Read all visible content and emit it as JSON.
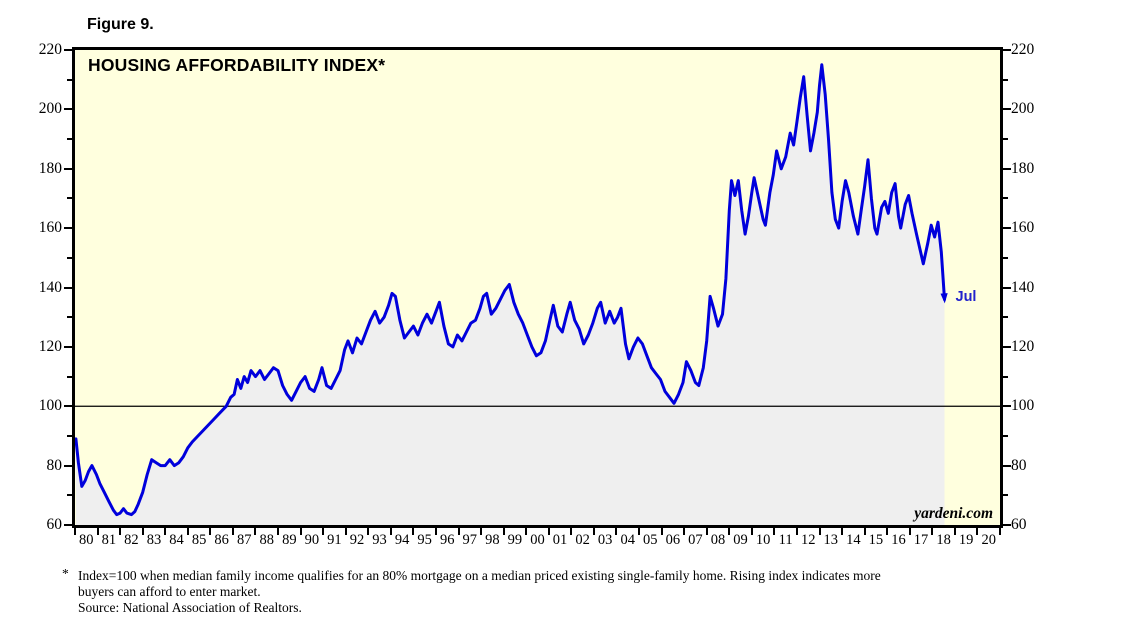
{
  "figure_label": "Figure 9.",
  "chart": {
    "title": "HOUSING AFFORDABILITY INDEX*",
    "watermark": "yardeni.com",
    "last_point_label": "Jul"
  },
  "footnote": {
    "marker": "*",
    "line1": "Index=100 when median family income qualifies for an 80% mortgage on a median priced existing single-family home. Rising index indicates more",
    "line2": "buyers can afford to enter market.",
    "source": "Source: National Association of Realtors."
  },
  "chart_data": {
    "type": "line",
    "title": "HOUSING AFFORDABILITY INDEX*",
    "xlabel": "",
    "ylabel": "",
    "xlim": [
      1980,
      2021
    ],
    "ylim": [
      60,
      220
    ],
    "grid": false,
    "fill_under_line": true,
    "reference_line": 100,
    "y_major_ticks": [
      220,
      200,
      180,
      160,
      140,
      120,
      100,
      80,
      60
    ],
    "y_minor_ticks": [
      210,
      190,
      170,
      150,
      130,
      110,
      90,
      70
    ],
    "x_tick_labels": [
      "80",
      "81",
      "82",
      "83",
      "84",
      "85",
      "86",
      "87",
      "88",
      "89",
      "90",
      "91",
      "92",
      "93",
      "94",
      "95",
      "96",
      "97",
      "98",
      "99",
      "00",
      "01",
      "02",
      "03",
      "04",
      "05",
      "06",
      "07",
      "08",
      "09",
      "10",
      "11",
      "12",
      "13",
      "14",
      "15",
      "16",
      "17",
      "18",
      "19",
      "20"
    ],
    "colors": {
      "plot_background": "#FFFFDE",
      "area_fill": "#EFEFEF",
      "line": "#0000DC",
      "annotation_blue": "#2222CC",
      "frame": "#000000"
    },
    "last_point": {
      "x": 2018.54,
      "y": 136,
      "label": "Jul"
    },
    "series": [
      {
        "name": "Housing Affordability Index (monthly, NAR composite)",
        "points": [
          [
            1980.04,
            89
          ],
          [
            1980.15,
            81
          ],
          [
            1980.3,
            73
          ],
          [
            1980.45,
            75
          ],
          [
            1980.6,
            78
          ],
          [
            1980.75,
            80
          ],
          [
            1980.95,
            77
          ],
          [
            1981.1,
            74
          ],
          [
            1981.3,
            71
          ],
          [
            1981.5,
            68
          ],
          [
            1981.7,
            65
          ],
          [
            1981.85,
            63.5
          ],
          [
            1982.0,
            64
          ],
          [
            1982.15,
            65.5
          ],
          [
            1982.3,
            64
          ],
          [
            1982.5,
            63.5
          ],
          [
            1982.65,
            64.5
          ],
          [
            1982.8,
            67
          ],
          [
            1983.0,
            71
          ],
          [
            1983.2,
            77
          ],
          [
            1983.4,
            82
          ],
          [
            1983.6,
            81
          ],
          [
            1983.8,
            80
          ],
          [
            1984.0,
            80
          ],
          [
            1984.2,
            82
          ],
          [
            1984.4,
            80
          ],
          [
            1984.6,
            81
          ],
          [
            1984.8,
            83
          ],
          [
            1985.0,
            86
          ],
          [
            1985.2,
            88
          ],
          [
            1985.45,
            90
          ],
          [
            1985.7,
            92
          ],
          [
            1985.95,
            94
          ],
          [
            1986.2,
            96
          ],
          [
            1986.45,
            98
          ],
          [
            1986.7,
            100
          ],
          [
            1986.9,
            103
          ],
          [
            1987.05,
            104
          ],
          [
            1987.2,
            109
          ],
          [
            1987.35,
            106
          ],
          [
            1987.5,
            110
          ],
          [
            1987.65,
            108
          ],
          [
            1987.8,
            112
          ],
          [
            1988.0,
            110
          ],
          [
            1988.2,
            112
          ],
          [
            1988.4,
            109
          ],
          [
            1988.6,
            111
          ],
          [
            1988.8,
            113
          ],
          [
            1989.0,
            112
          ],
          [
            1989.2,
            107
          ],
          [
            1989.4,
            104
          ],
          [
            1989.6,
            102
          ],
          [
            1989.8,
            105
          ],
          [
            1990.0,
            108
          ],
          [
            1990.2,
            110
          ],
          [
            1990.4,
            106
          ],
          [
            1990.6,
            105
          ],
          [
            1990.8,
            109
          ],
          [
            1990.95,
            113
          ],
          [
            1991.15,
            107
          ],
          [
            1991.35,
            106
          ],
          [
            1991.55,
            109
          ],
          [
            1991.75,
            112
          ],
          [
            1991.95,
            119
          ],
          [
            1992.1,
            122
          ],
          [
            1992.3,
            118
          ],
          [
            1992.5,
            123
          ],
          [
            1992.7,
            121
          ],
          [
            1992.9,
            125
          ],
          [
            1993.1,
            129
          ],
          [
            1993.3,
            132
          ],
          [
            1993.5,
            128
          ],
          [
            1993.7,
            130
          ],
          [
            1993.9,
            134
          ],
          [
            1994.05,
            138
          ],
          [
            1994.2,
            137
          ],
          [
            1994.4,
            129
          ],
          [
            1994.6,
            123
          ],
          [
            1994.8,
            125
          ],
          [
            1995.0,
            127
          ],
          [
            1995.2,
            124
          ],
          [
            1995.4,
            128
          ],
          [
            1995.6,
            131
          ],
          [
            1995.8,
            128
          ],
          [
            1996.0,
            132
          ],
          [
            1996.15,
            135
          ],
          [
            1996.35,
            127
          ],
          [
            1996.55,
            121
          ],
          [
            1996.75,
            120
          ],
          [
            1996.95,
            124
          ],
          [
            1997.15,
            122
          ],
          [
            1997.35,
            125
          ],
          [
            1997.55,
            128
          ],
          [
            1997.75,
            129
          ],
          [
            1997.95,
            133
          ],
          [
            1998.1,
            137
          ],
          [
            1998.25,
            138
          ],
          [
            1998.45,
            131
          ],
          [
            1998.65,
            133
          ],
          [
            1998.85,
            136
          ],
          [
            1999.05,
            139
          ],
          [
            1999.25,
            141
          ],
          [
            1999.45,
            135
          ],
          [
            1999.65,
            131
          ],
          [
            1999.85,
            128
          ],
          [
            2000.05,
            124
          ],
          [
            2000.25,
            120
          ],
          [
            2000.45,
            117
          ],
          [
            2000.65,
            118
          ],
          [
            2000.85,
            122
          ],
          [
            2001.05,
            129
          ],
          [
            2001.2,
            134
          ],
          [
            2001.4,
            127
          ],
          [
            2001.6,
            125
          ],
          [
            2001.8,
            131
          ],
          [
            2001.95,
            135
          ],
          [
            2002.15,
            129
          ],
          [
            2002.35,
            126
          ],
          [
            2002.55,
            121
          ],
          [
            2002.75,
            124
          ],
          [
            2002.95,
            128
          ],
          [
            2003.15,
            133
          ],
          [
            2003.3,
            135
          ],
          [
            2003.5,
            128
          ],
          [
            2003.7,
            132
          ],
          [
            2003.9,
            128
          ],
          [
            2004.05,
            130
          ],
          [
            2004.2,
            133
          ],
          [
            2004.4,
            121
          ],
          [
            2004.55,
            116
          ],
          [
            2004.75,
            120
          ],
          [
            2004.95,
            123
          ],
          [
            2005.15,
            121
          ],
          [
            2005.35,
            117
          ],
          [
            2005.55,
            113
          ],
          [
            2005.75,
            111
          ],
          [
            2005.95,
            109
          ],
          [
            2006.15,
            105
          ],
          [
            2006.35,
            103
          ],
          [
            2006.55,
            101
          ],
          [
            2006.75,
            104
          ],
          [
            2006.95,
            108
          ],
          [
            2007.1,
            115
          ],
          [
            2007.3,
            112
          ],
          [
            2007.5,
            108
          ],
          [
            2007.65,
            107
          ],
          [
            2007.85,
            113
          ],
          [
            2008.0,
            122
          ],
          [
            2008.15,
            137
          ],
          [
            2008.3,
            133
          ],
          [
            2008.5,
            127
          ],
          [
            2008.7,
            131
          ],
          [
            2008.85,
            143
          ],
          [
            2009.0,
            166
          ],
          [
            2009.1,
            176
          ],
          [
            2009.25,
            171
          ],
          [
            2009.4,
            176
          ],
          [
            2009.55,
            166
          ],
          [
            2009.7,
            158
          ],
          [
            2009.85,
            164
          ],
          [
            2010.0,
            172
          ],
          [
            2010.1,
            177
          ],
          [
            2010.3,
            170
          ],
          [
            2010.5,
            163
          ],
          [
            2010.6,
            161
          ],
          [
            2010.8,
            172
          ],
          [
            2010.95,
            178
          ],
          [
            2011.1,
            186
          ],
          [
            2011.3,
            180
          ],
          [
            2011.5,
            184
          ],
          [
            2011.7,
            192
          ],
          [
            2011.85,
            188
          ],
          [
            2012.0,
            196
          ],
          [
            2012.15,
            204
          ],
          [
            2012.3,
            211
          ],
          [
            2012.45,
            198
          ],
          [
            2012.6,
            186
          ],
          [
            2012.75,
            192
          ],
          [
            2012.9,
            199
          ],
          [
            2013.0,
            208
          ],
          [
            2013.1,
            215
          ],
          [
            2013.25,
            205
          ],
          [
            2013.4,
            190
          ],
          [
            2013.55,
            172
          ],
          [
            2013.7,
            163
          ],
          [
            2013.85,
            160
          ],
          [
            2014.0,
            169
          ],
          [
            2014.15,
            176
          ],
          [
            2014.3,
            172
          ],
          [
            2014.5,
            164
          ],
          [
            2014.7,
            158
          ],
          [
            2014.85,
            166
          ],
          [
            2015.0,
            174
          ],
          [
            2015.15,
            183
          ],
          [
            2015.3,
            170
          ],
          [
            2015.45,
            160
          ],
          [
            2015.55,
            158
          ],
          [
            2015.75,
            167
          ],
          [
            2015.9,
            169
          ],
          [
            2016.05,
            165
          ],
          [
            2016.2,
            172
          ],
          [
            2016.35,
            175
          ],
          [
            2016.5,
            164
          ],
          [
            2016.6,
            160
          ],
          [
            2016.8,
            168
          ],
          [
            2016.95,
            171
          ],
          [
            2017.1,
            165
          ],
          [
            2017.3,
            158
          ],
          [
            2017.45,
            153
          ],
          [
            2017.6,
            148
          ],
          [
            2017.8,
            155
          ],
          [
            2017.95,
            161
          ],
          [
            2018.1,
            157
          ],
          [
            2018.25,
            162
          ],
          [
            2018.4,
            152
          ],
          [
            2018.54,
            136
          ]
        ]
      }
    ]
  }
}
